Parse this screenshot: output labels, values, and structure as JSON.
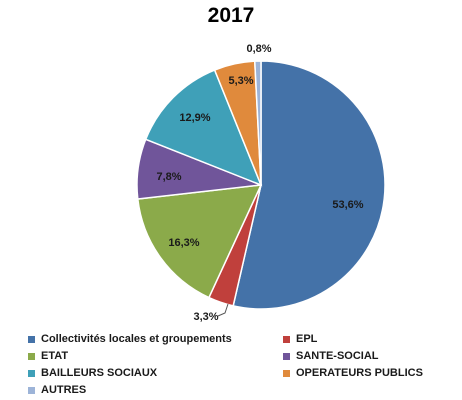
{
  "chart_data": {
    "type": "pie",
    "title": "2017",
    "slices": [
      {
        "name": "Collectivités locales et groupements",
        "value": 53.6,
        "label": "53,6%",
        "color": "#4472A8"
      },
      {
        "name": "EPL",
        "value": 3.3,
        "label": "3,3%",
        "color": "#C0403C"
      },
      {
        "name": "ETAT",
        "value": 16.3,
        "label": "16,3%",
        "color": "#8BAA4A"
      },
      {
        "name": "SANTE-SOCIAL",
        "value": 7.8,
        "label": "7,8%",
        "color": "#70559A"
      },
      {
        "name": "BAILLEURS SOCIAUX",
        "value": 12.9,
        "label": "12,9%",
        "color": "#3FA0B8"
      },
      {
        "name": "OPERATEURS PUBLICS",
        "value": 5.3,
        "label": "5,3%",
        "color": "#E08A3C"
      },
      {
        "name": "AUTRES",
        "value": 0.8,
        "label": "0,8%",
        "color": "#9DB4D8"
      }
    ],
    "legend_placement": "bottom"
  }
}
